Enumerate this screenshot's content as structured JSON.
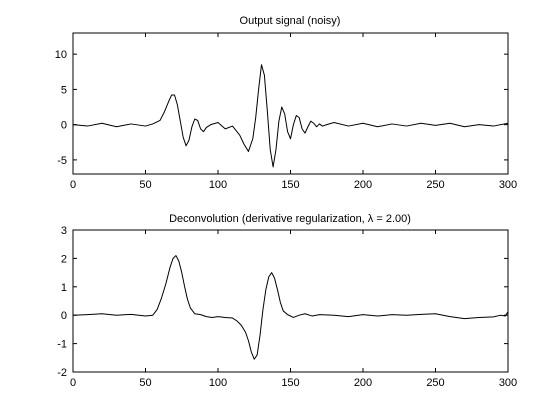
{
  "chart_data": [
    {
      "type": "line",
      "title": "Output signal (noisy)",
      "xlabel": "",
      "ylabel": "",
      "xlim": [
        0,
        300
      ],
      "ylim": [
        -7,
        13
      ],
      "xticks": [
        0,
        50,
        100,
        150,
        200,
        250,
        300
      ],
      "yticks": [
        -5,
        0,
        5,
        10
      ],
      "grid": false,
      "series": [
        {
          "color": "#000000",
          "x": [
            0,
            10,
            20,
            30,
            40,
            50,
            55,
            60,
            63,
            66,
            68,
            70,
            72,
            74,
            76,
            78,
            80,
            82,
            84,
            86,
            88,
            90,
            92,
            95,
            100,
            105,
            110,
            115,
            118,
            121,
            124,
            126,
            128,
            130,
            132,
            134,
            136,
            138,
            140,
            142,
            144,
            146,
            148,
            150,
            152,
            154,
            156,
            158,
            160,
            162,
            164,
            166,
            168,
            170,
            172,
            175,
            180,
            190,
            200,
            210,
            220,
            230,
            240,
            250,
            260,
            270,
            280,
            290,
            300
          ],
          "y": [
            0.0,
            -0.2,
            0.2,
            -0.3,
            0.1,
            -0.2,
            0.1,
            0.6,
            1.8,
            3.3,
            4.2,
            4.2,
            2.8,
            0.5,
            -1.8,
            -3.0,
            -2.2,
            -0.3,
            0.8,
            0.6,
            -0.6,
            -1.0,
            -0.4,
            0.0,
            0.3,
            -0.6,
            -0.2,
            -1.5,
            -2.8,
            -3.8,
            -2.0,
            1.0,
            5.0,
            8.5,
            7.0,
            2.0,
            -3.5,
            -6.0,
            -3.5,
            0.5,
            2.5,
            1.5,
            -1.0,
            -2.0,
            0.0,
            1.3,
            1.0,
            -0.6,
            -1.2,
            -0.3,
            0.5,
            0.2,
            -0.3,
            0.1,
            -0.2,
            0.0,
            0.3,
            -0.2,
            0.2,
            -0.3,
            0.1,
            -0.2,
            0.2,
            -0.1,
            0.2,
            -0.3,
            0.0,
            -0.2,
            0.2
          ]
        }
      ]
    },
    {
      "type": "line",
      "title": "Deconvolution (derivative regularization, λ = 2.00)",
      "xlabel": "",
      "ylabel": "",
      "xlim": [
        0,
        300
      ],
      "ylim": [
        -2,
        3
      ],
      "xticks": [
        0,
        50,
        100,
        150,
        200,
        250,
        300
      ],
      "yticks": [
        -2,
        -1,
        0,
        1,
        2,
        3
      ],
      "grid": false,
      "series": [
        {
          "color": "#000000",
          "x": [
            0,
            10,
            20,
            30,
            40,
            50,
            55,
            58,
            61,
            64,
            67,
            69,
            71,
            73,
            75,
            77,
            79,
            81,
            84,
            88,
            92,
            96,
            100,
            105,
            110,
            113,
            116,
            119,
            121,
            123,
            125,
            127,
            129,
            131,
            133,
            135,
            137,
            139,
            141,
            143,
            145,
            148,
            152,
            156,
            160,
            165,
            170,
            180,
            190,
            200,
            210,
            220,
            230,
            240,
            250,
            260,
            270,
            280,
            290,
            295,
            298,
            300
          ],
          "y": [
            0.0,
            0.02,
            0.05,
            0.0,
            0.03,
            -0.03,
            0.0,
            0.2,
            0.6,
            1.1,
            1.7,
            2.0,
            2.1,
            1.9,
            1.5,
            1.0,
            0.55,
            0.25,
            0.05,
            0.02,
            -0.05,
            -0.08,
            -0.05,
            -0.08,
            -0.1,
            -0.2,
            -0.35,
            -0.6,
            -0.9,
            -1.3,
            -1.55,
            -1.4,
            -0.7,
            0.2,
            0.9,
            1.35,
            1.5,
            1.3,
            0.9,
            0.45,
            0.15,
            0.02,
            -0.08,
            0.0,
            0.05,
            -0.03,
            0.02,
            0.0,
            -0.05,
            0.02,
            -0.03,
            0.02,
            0.0,
            0.03,
            0.05,
            -0.05,
            -0.12,
            -0.08,
            -0.06,
            0.0,
            -0.03,
            0.12
          ]
        }
      ]
    }
  ]
}
